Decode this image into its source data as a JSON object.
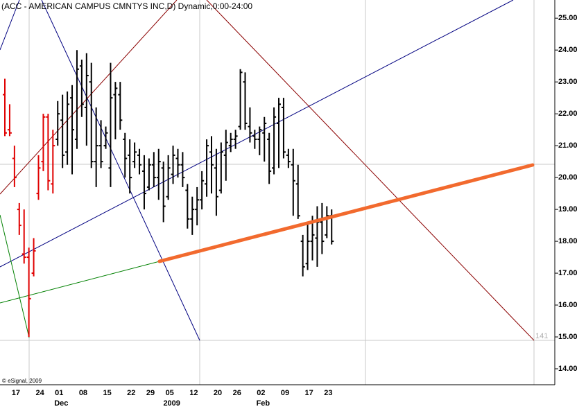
{
  "chart_data": {
    "type": "ohlc",
    "title": "(ACC - AMERICAN CAMPUS CMNTYS INC,D) Dynamic,0:00-24:00",
    "credit": "© eSignal, 2009",
    "corner_label": "141",
    "categories": [
      null,
      "17",
      null,
      null,
      null,
      null,
      "24",
      null,
      null,
      null,
      "01",
      null,
      null,
      null,
      null,
      "08",
      null,
      null,
      null,
      null,
      "15",
      null,
      null,
      null,
      null,
      "22",
      null,
      null,
      null,
      "29",
      null,
      null,
      null,
      "05",
      null,
      null,
      null,
      null,
      "12",
      null,
      null,
      null,
      null,
      "20",
      null,
      null,
      null,
      "26",
      null,
      null,
      null,
      null,
      "02",
      null,
      null,
      null,
      null,
      "09",
      null,
      null,
      null,
      null,
      "17",
      null,
      null,
      null,
      "23",
      null,
      null
    ],
    "xticks2": [
      {
        "value": 10,
        "label": "Dec"
      },
      {
        "value": 33,
        "label": "2009"
      },
      {
        "value": 52,
        "label": "Feb"
      }
    ],
    "high": [
      23.1,
      22.3,
      21.0,
      19.2,
      19.0,
      17.8,
      18.1,
      20.7,
      22.0,
      22.0,
      21.5,
      22.4,
      22.6,
      22.7,
      22.9,
      24.0,
      23.7,
      23.9,
      23.6,
      22.2,
      21.8,
      21.6,
      23.6,
      23.0,
      23.0,
      21.4,
      21.2,
      21.1,
      20.9,
      20.7,
      20.6,
      20.8,
      20.9,
      20.5,
      20.7,
      21.0,
      20.9,
      20.8,
      19.8,
      19.4,
      19.7,
      20.2,
      21.2,
      21.3,
      20.9,
      21.1,
      21.5,
      21.4,
      21.5,
      23.4,
      23.3,
      22.2,
      21.5,
      21.6,
      21.9,
      21.4,
      22.2,
      22.5,
      22.5,
      20.9,
      20.9,
      20.4,
      18.2,
      18.6,
      18.8,
      19.1,
      19.2,
      19.1,
      19.0
    ],
    "low": [
      21.3,
      21.3,
      19.7,
      18.2,
      17.3,
      15.0,
      16.9,
      19.3,
      20.2,
      19.6,
      19.5,
      21.0,
      20.3,
      20.4,
      20.1,
      20.9,
      21.9,
      21.0,
      20.3,
      19.7,
      20.3,
      20.9,
      19.7,
      21.2,
      21.5,
      20.0,
      19.5,
      20.3,
      20.1,
      19.0,
      19.6,
      19.7,
      19.3,
      18.6,
      19.3,
      19.8,
      20.0,
      19.7,
      18.4,
      18.2,
      18.5,
      19.0,
      19.4,
      19.5,
      18.8,
      19.5,
      19.9,
      20.8,
      20.9,
      21.5,
      21.5,
      21.1,
      20.9,
      20.7,
      20.5,
      19.8,
      20.1,
      20.3,
      20.6,
      20.3,
      18.8,
      18.7,
      16.9,
      17.1,
      17.4,
      17.2,
      17.6,
      18.1,
      17.9
    ],
    "open": [
      22.6,
      21.5,
      20.6,
      19.0,
      17.6,
      17.5,
      17.0,
      19.5,
      20.5,
      21.9,
      19.8,
      21.2,
      21.8,
      20.8,
      22.5,
      21.2,
      23.5,
      22.2,
      23.0,
      20.5,
      21.0,
      21.0,
      20.3,
      22.6,
      22.6,
      21.2,
      20.7,
      20.5,
      20.7,
      20.2,
      19.7,
      20.4,
      20.0,
      20.3,
      19.4,
      20.1,
      20.6,
      20.4,
      19.6,
      18.7,
      19.0,
      19.3,
      19.8,
      20.8,
      20.3,
      19.6,
      20.7,
      21.0,
      21.2,
      21.6,
      23.0,
      21.6,
      21.3,
      21.2,
      21.4,
      21.2,
      20.3,
      21.7,
      22.2,
      20.7,
      20.4,
      19.8,
      18.0,
      17.3,
      18.0,
      18.1,
      18.6,
      18.2,
      18.8
    ],
    "close": [
      21.4,
      21.4,
      20.0,
      18.5,
      17.5,
      16.2,
      17.7,
      20.3,
      21.9,
      19.9,
      21.0,
      22.0,
      20.7,
      22.3,
      21.5,
      23.4,
      22.3,
      23.2,
      20.5,
      21.0,
      20.5,
      21.4,
      22.5,
      22.8,
      21.8,
      20.6,
      20.0,
      20.8,
      20.4,
      19.5,
      20.4,
      20.0,
      20.5,
      19.1,
      20.3,
      20.7,
      20.4,
      20.0,
      18.7,
      19.0,
      19.3,
      19.9,
      21.0,
      20.4,
      19.4,
      20.8,
      21.1,
      21.2,
      21.3,
      23.3,
      21.7,
      21.4,
      21.2,
      21.5,
      21.7,
      20.2,
      21.9,
      22.3,
      20.8,
      20.5,
      19.9,
      18.8,
      17.2,
      18.0,
      18.2,
      18.6,
      18.0,
      18.8,
      18.0
    ],
    "colors": [
      "#e00000",
      "#e00000",
      "#e00000",
      "#e00000",
      "#e00000",
      "#e00000",
      "#e00000",
      "#e00000",
      "#e00000",
      "#e00000",
      "#e00000",
      "#000000",
      "#000000",
      "#000000",
      "#000000",
      "#000000",
      "#000000",
      "#000000",
      "#000000",
      "#000000",
      "#000000",
      "#000000",
      "#000000",
      "#000000",
      "#000000",
      "#000000",
      "#000000",
      "#000000",
      "#000000",
      "#000000",
      "#000000",
      "#000000",
      "#000000",
      "#000000",
      "#000000",
      "#000000",
      "#000000",
      "#000000",
      "#000000",
      "#000000",
      "#000000",
      "#000000",
      "#000000",
      "#000000",
      "#000000",
      "#000000",
      "#000000",
      "#000000",
      "#000000",
      "#000000",
      "#000000",
      "#000000",
      "#000000",
      "#000000",
      "#000000",
      "#000000",
      "#000000",
      "#000000",
      "#000000",
      "#000000",
      "#000000",
      "#000000",
      "#000000",
      "#000000",
      "#000000",
      "#000000",
      "#000000",
      "#000000",
      "#000000"
    ],
    "ylim": [
      13.5,
      25.57
    ],
    "yticks": [
      {
        "value": 14,
        "label": "14.00"
      },
      {
        "value": 15,
        "label": "15.00"
      },
      {
        "value": 16,
        "label": "16.00"
      },
      {
        "value": 17,
        "label": "17.00"
      },
      {
        "value": 18,
        "label": "18.00"
      },
      {
        "value": 19,
        "label": "19.00"
      },
      {
        "value": 20,
        "label": "20.00"
      },
      {
        "value": 21,
        "label": "21.00"
      },
      {
        "value": 22,
        "label": "22.00"
      },
      {
        "value": 23,
        "label": "23.00"
      },
      {
        "value": 24,
        "label": "24.00"
      },
      {
        "value": 25,
        "label": "25.00"
      }
    ]
  }
}
